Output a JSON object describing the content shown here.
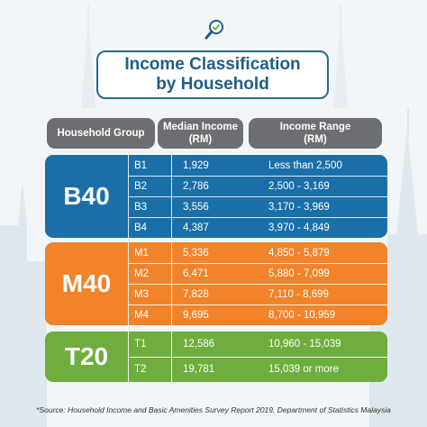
{
  "title": {
    "line1": "Income Classification",
    "line2": "by Household"
  },
  "logo_icon": "magnifier-check-icon",
  "headers": {
    "group": "Household Group",
    "median": "Median Income\n(RM)",
    "range": "Income Range\n(RM)"
  },
  "colors": {
    "b40": "#1a6fa9",
    "m40": "#f1842a",
    "t20": "#6fae3e",
    "header": "#6d6e71",
    "title": "#1f5f86"
  },
  "groups": [
    {
      "label": "B40",
      "rows": [
        {
          "code": "B1",
          "median": "1,929",
          "range": "Less than  2,500"
        },
        {
          "code": "B2",
          "median": "2,786",
          "range": "2,500 - 3,169"
        },
        {
          "code": "B3",
          "median": "3,556",
          "range": "3,170 - 3,969"
        },
        {
          "code": "B4",
          "median": "4,387",
          "range": "3,970 - 4,849"
        }
      ]
    },
    {
      "label": "M40",
      "rows": [
        {
          "code": "M1",
          "median": "5,336",
          "range": "4,850 - 5,879"
        },
        {
          "code": "M2",
          "median": "6,471",
          "range": "5,880 - 7,099"
        },
        {
          "code": "M3",
          "median": "7,828",
          "range": "7,110 - 8,699"
        },
        {
          "code": "M4",
          "median": "9,695",
          "range": "8,700 - 10,959"
        }
      ]
    },
    {
      "label": "T20",
      "rows": [
        {
          "code": "T1",
          "median": "12,586",
          "range": "10,960 - 15,039"
        },
        {
          "code": "T2",
          "median": "19,781",
          "range": "15,039 or more"
        }
      ]
    }
  ],
  "source": "*Source:  Household Income and Basic Amenities Survey Report 2019, Department of Statistics Malaysia"
}
